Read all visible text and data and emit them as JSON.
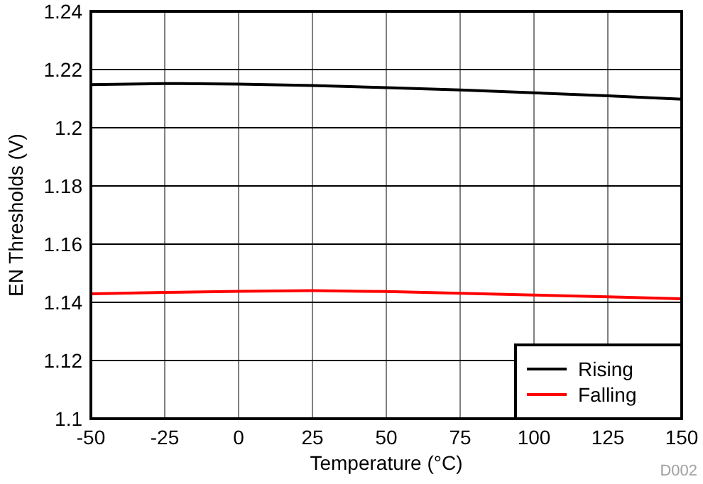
{
  "chart_data": {
    "type": "line",
    "xlabel": "Temperature (°C)",
    "ylabel": "EN Thresholds (V)",
    "x": [
      -50,
      -25,
      0,
      25,
      50,
      75,
      100,
      125,
      150
    ],
    "series": [
      {
        "name": "Rising",
        "color": "#000000",
        "values": [
          1.2148,
          1.2152,
          1.215,
          1.2145,
          1.2138,
          1.213,
          1.212,
          1.211,
          1.2098
        ]
      },
      {
        "name": "Falling",
        "color": "#ff0000",
        "values": [
          1.1429,
          1.1434,
          1.1438,
          1.144,
          1.1437,
          1.1431,
          1.1425,
          1.1419,
          1.1412
        ]
      }
    ],
    "xlim": [
      -50,
      150
    ],
    "xticks": [
      -50,
      -25,
      0,
      25,
      50,
      75,
      100,
      125,
      150
    ],
    "ylim": [
      1.1,
      1.24
    ],
    "yticks": [
      1.1,
      1.12,
      1.14,
      1.16,
      1.18,
      1.2,
      1.22,
      1.24
    ],
    "grid": true,
    "legend": "bottom right",
    "annotations": [
      "D002"
    ]
  }
}
